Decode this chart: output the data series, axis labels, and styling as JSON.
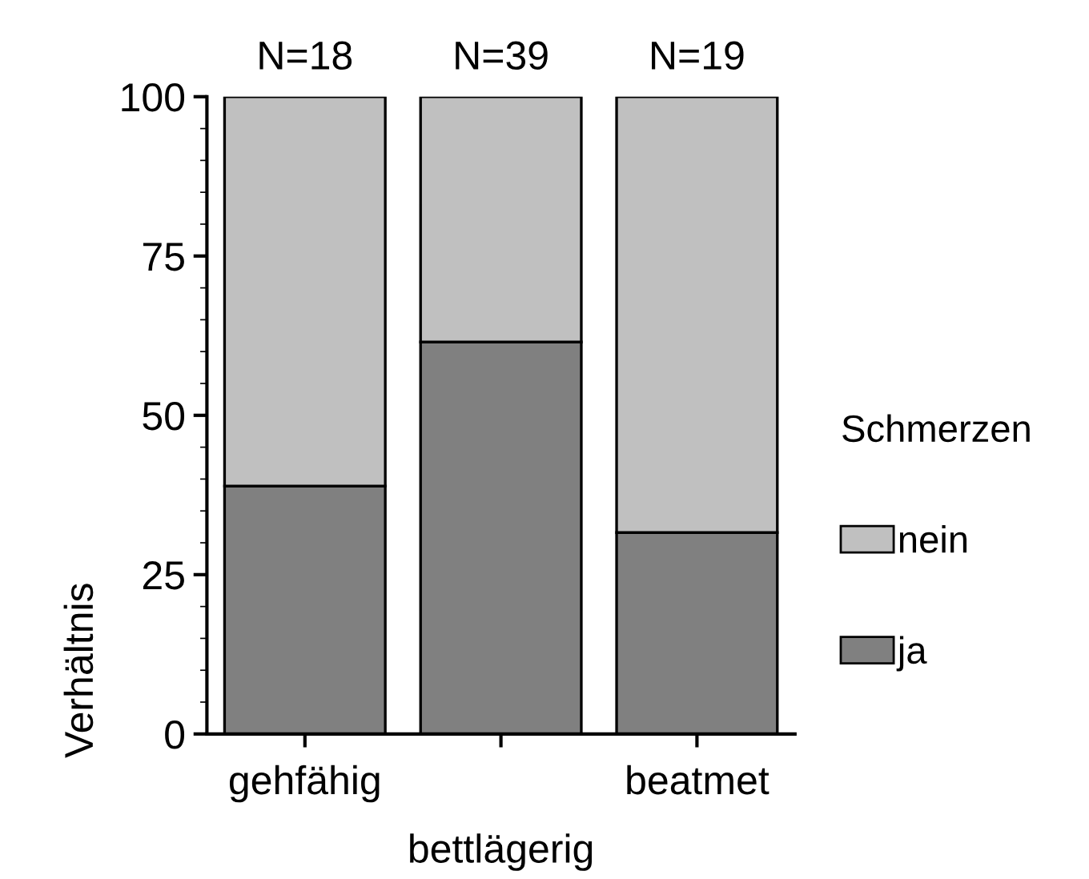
{
  "chart_data": {
    "type": "bar",
    "stacked": true,
    "xlabel": "bettlägerig",
    "ylabel": "Verhältnis",
    "categories": [
      "gehfähig",
      null,
      "beatmet"
    ],
    "series": [
      {
        "name": "ja",
        "color": "#808080",
        "values": [
          38.9,
          61.5,
          31.6
        ]
      },
      {
        "name": "nein",
        "color": "#c0c0c0",
        "values": [
          61.1,
          38.5,
          68.4
        ]
      }
    ],
    "ylim": [
      0,
      100
    ],
    "yticks": [
      0,
      25,
      50,
      75,
      100
    ],
    "grid": false,
    "legend": "right",
    "legend_title": "Schmerzen",
    "annotations": [
      "N=18",
      "N=39",
      "N=19"
    ]
  }
}
